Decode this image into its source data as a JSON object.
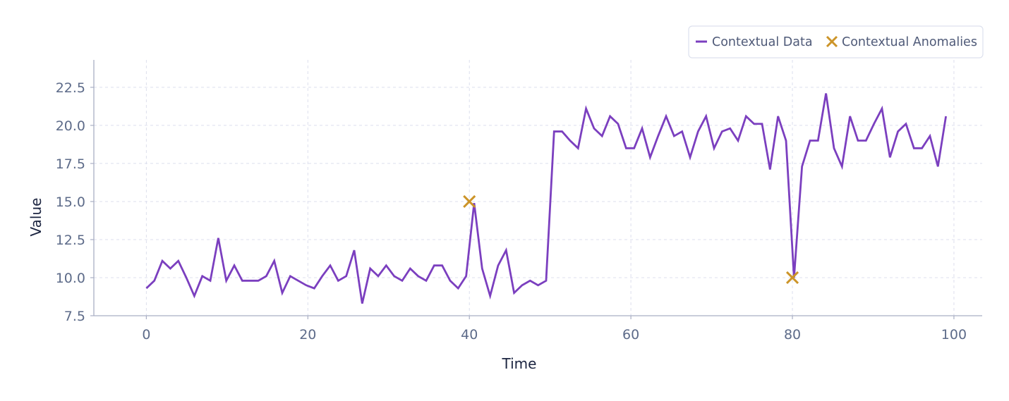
{
  "chart_data": {
    "type": "line",
    "xlabel": "Time",
    "ylabel": "Value",
    "xlim": [
      -6.5,
      103.5
    ],
    "ylim": [
      7.5,
      24.3
    ],
    "xticks": [
      0,
      20,
      40,
      60,
      80,
      100
    ],
    "xtick_labels": [
      "0",
      "20",
      "40",
      "60",
      "80",
      "100"
    ],
    "yticks": [
      7.5,
      10.0,
      12.5,
      15.0,
      17.5,
      20.0,
      22.5
    ],
    "ytick_labels": [
      "7.5",
      "10.0",
      "12.5",
      "15.0",
      "17.5",
      "20.0",
      "22.5"
    ],
    "grid": true,
    "legend_position": "top-right",
    "series": [
      {
        "name": "Contextual Data",
        "kind": "line",
        "color": "#7b3fbf",
        "x": [
          0,
          0.99,
          1.98,
          2.97,
          3.96,
          4.95,
          5.94,
          6.93,
          7.92,
          8.91,
          9.9,
          10.89,
          11.88,
          12.87,
          13.86,
          14.85,
          15.84,
          16.83,
          17.82,
          18.81,
          19.8,
          20.79,
          21.78,
          22.77,
          23.76,
          24.75,
          25.74,
          26.73,
          27.72,
          28.71,
          29.7,
          30.69,
          31.68,
          32.67,
          33.66,
          34.65,
          35.64,
          36.63,
          37.62,
          38.61,
          39.6,
          40.59,
          41.58,
          42.57,
          43.56,
          44.55,
          45.54,
          46.53,
          47.52,
          48.51,
          49.5,
          50.49,
          51.48,
          52.47,
          53.46,
          54.45,
          55.44,
          56.43,
          57.42,
          58.41,
          59.41,
          60.4,
          61.39,
          62.38,
          63.37,
          64.36,
          65.35,
          66.34,
          67.33,
          68.32,
          69.31,
          70.3,
          71.29,
          72.28,
          73.27,
          74.26,
          75.25,
          76.24,
          77.23,
          78.22,
          79.21,
          80.2,
          81.19,
          82.18,
          83.17,
          84.16,
          85.15,
          86.14,
          87.13,
          88.12,
          89.11,
          90.1,
          91.09,
          92.08,
          93.07,
          94.06,
          95.05,
          96.04,
          97.03,
          98.02,
          99.01
        ],
        "y": [
          9.3,
          9.8,
          11.1,
          10.6,
          11.1,
          10.0,
          8.8,
          10.1,
          9.8,
          12.6,
          9.8,
          10.8,
          9.8,
          9.8,
          9.8,
          10.1,
          11.1,
          9.0,
          10.1,
          9.8,
          9.5,
          9.3,
          10.1,
          10.8,
          9.8,
          10.1,
          11.8,
          8.3,
          10.6,
          10.1,
          10.8,
          10.1,
          9.8,
          10.6,
          10.1,
          9.8,
          10.8,
          10.8,
          9.8,
          9.3,
          10.1,
          14.9,
          10.6,
          8.8,
          10.8,
          11.8,
          9.0,
          9.5,
          9.8,
          9.5,
          9.8,
          19.6,
          19.6,
          19.0,
          18.5,
          21.1,
          19.8,
          19.3,
          20.6,
          20.1,
          18.5,
          18.5,
          19.8,
          17.9,
          19.3,
          20.6,
          19.3,
          19.6,
          17.9,
          19.6,
          20.6,
          18.5,
          19.6,
          19.8,
          19.0,
          20.6,
          20.1,
          20.1,
          17.1,
          20.6,
          19.0,
          10.0,
          17.3,
          19.0,
          19.0,
          22.1,
          18.5,
          17.3,
          20.6,
          19.0,
          19.0,
          20.1,
          21.1,
          17.9,
          19.6,
          20.1,
          18.5,
          18.5,
          19.3,
          17.3,
          20.6
        ]
      },
      {
        "name": "Contextual Anomalies",
        "kind": "marker",
        "marker": "x",
        "color": "#cc9428",
        "x": [
          40,
          80
        ],
        "y": [
          15.0,
          10.0
        ]
      }
    ]
  }
}
